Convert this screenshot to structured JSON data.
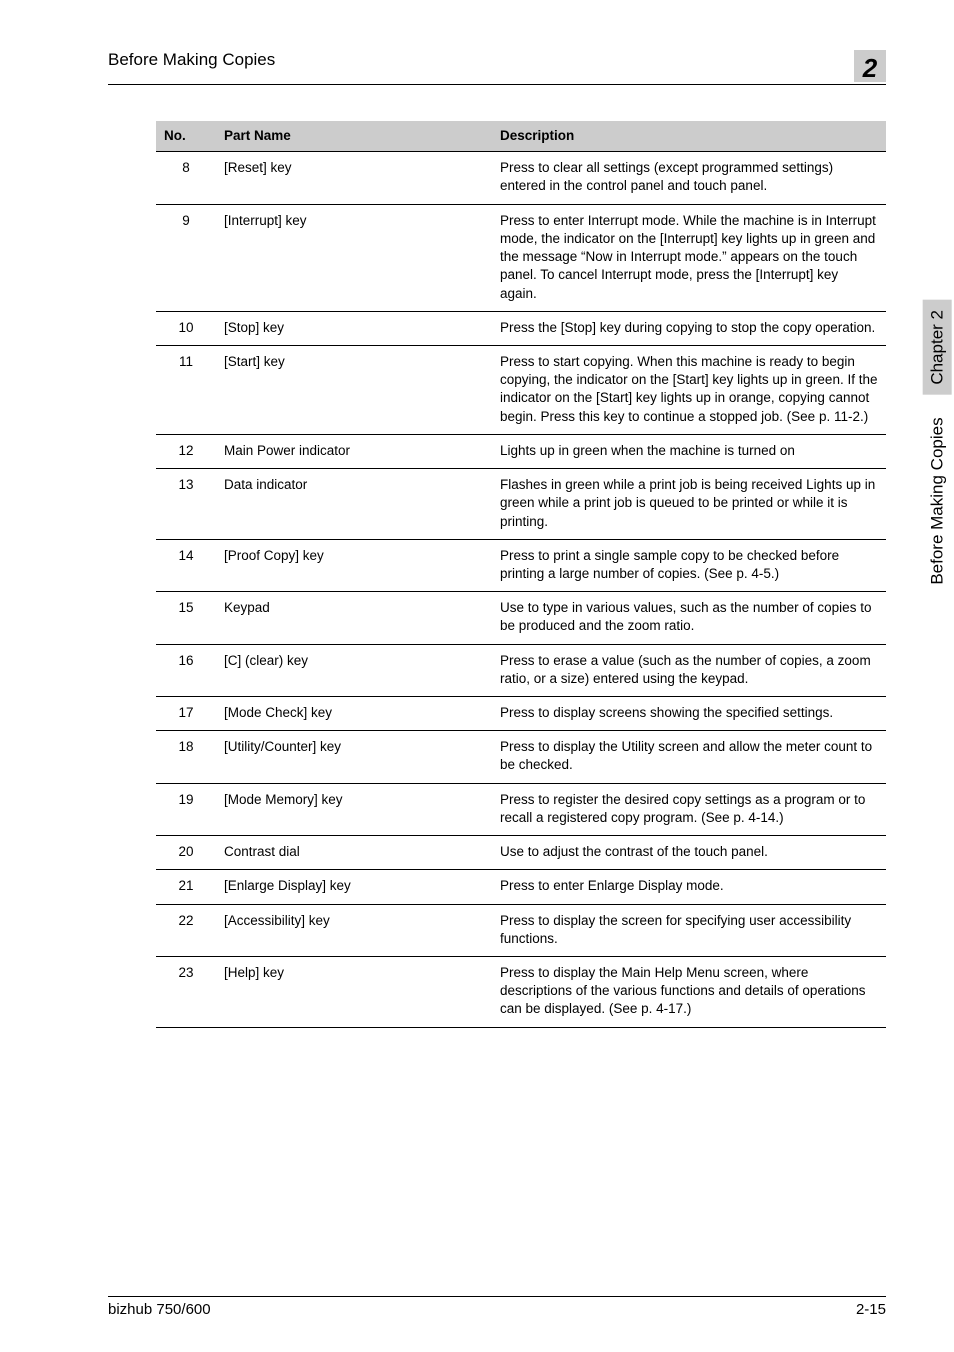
{
  "header": {
    "title": "Before Making Copies",
    "chapter_number": "2"
  },
  "side": {
    "caption": "Before Making Copies",
    "chapter": "Chapter 2"
  },
  "table": {
    "headers": {
      "no": "No.",
      "part": "Part Name",
      "desc": "Description"
    },
    "rows": [
      {
        "no": "8",
        "part": "[Reset] key",
        "desc": "Press to clear all settings (except programmed settings) entered in the control panel and touch panel."
      },
      {
        "no": "9",
        "part": "[Interrupt] key",
        "desc": "Press to enter Interrupt mode.\nWhile the machine is in Interrupt mode, the indicator on the [Interrupt] key lights up in green and the message “Now in Interrupt mode.” appears on the touch panel. To cancel Interrupt mode, press the [Interrupt] key again."
      },
      {
        "no": "10",
        "part": "[Stop] key",
        "desc": "Press the [Stop] key during copying to stop the copy operation."
      },
      {
        "no": "11",
        "part": "[Start] key",
        "desc": "Press to start copying. When this machine is ready to begin copying, the indicator on the [Start] key lights up in green. If the indicator on the [Start] key lights up in orange, copying cannot begin.\nPress this key to continue a stopped job. (See p. 11-2.)"
      },
      {
        "no": "12",
        "part": "Main Power indicator",
        "desc": "Lights up in green when the machine is turned on"
      },
      {
        "no": "13",
        "part": "Data indicator",
        "desc": "Flashes in green while a print job is being received\nLights up in green while a print job is queued to be printed or while it is printing."
      },
      {
        "no": "14",
        "part": "[Proof Copy] key",
        "desc": "Press to print a single sample copy to be checked before printing a large number of copies. (See p. 4-5.)"
      },
      {
        "no": "15",
        "part": "Keypad",
        "desc": "Use to type in various values, such as the number of copies to be produced and the zoom ratio."
      },
      {
        "no": "16",
        "part": "[C] (clear) key",
        "desc": "Press to erase a value (such as the number of copies, a zoom ratio, or a size) entered using the keypad."
      },
      {
        "no": "17",
        "part": "[Mode Check] key",
        "desc": "Press to display screens showing the specified settings."
      },
      {
        "no": "18",
        "part": "[Utility/Counter] key",
        "desc": "Press to display the Utility screen and allow the meter count to be checked."
      },
      {
        "no": "19",
        "part": "[Mode Memory] key",
        "desc": "Press to register the desired copy settings as a program or to recall a registered copy program. (See p. 4-14.)"
      },
      {
        "no": "20",
        "part": "Contrast dial",
        "desc": "Use to adjust the contrast of the touch panel."
      },
      {
        "no": "21",
        "part": "[Enlarge Display] key",
        "desc": "Press to enter Enlarge Display mode."
      },
      {
        "no": "22",
        "part": "[Accessibility] key",
        "desc": "Press to display the screen for specifying user accessibility functions."
      },
      {
        "no": "23",
        "part": "[Help] key",
        "desc": "Press to display the Main Help Menu screen, where descriptions of the various functions and details of operations can be displayed. (See p. 4-17.)"
      }
    ]
  },
  "footer": {
    "left": "bizhub 750/600",
    "right": "2-15"
  }
}
